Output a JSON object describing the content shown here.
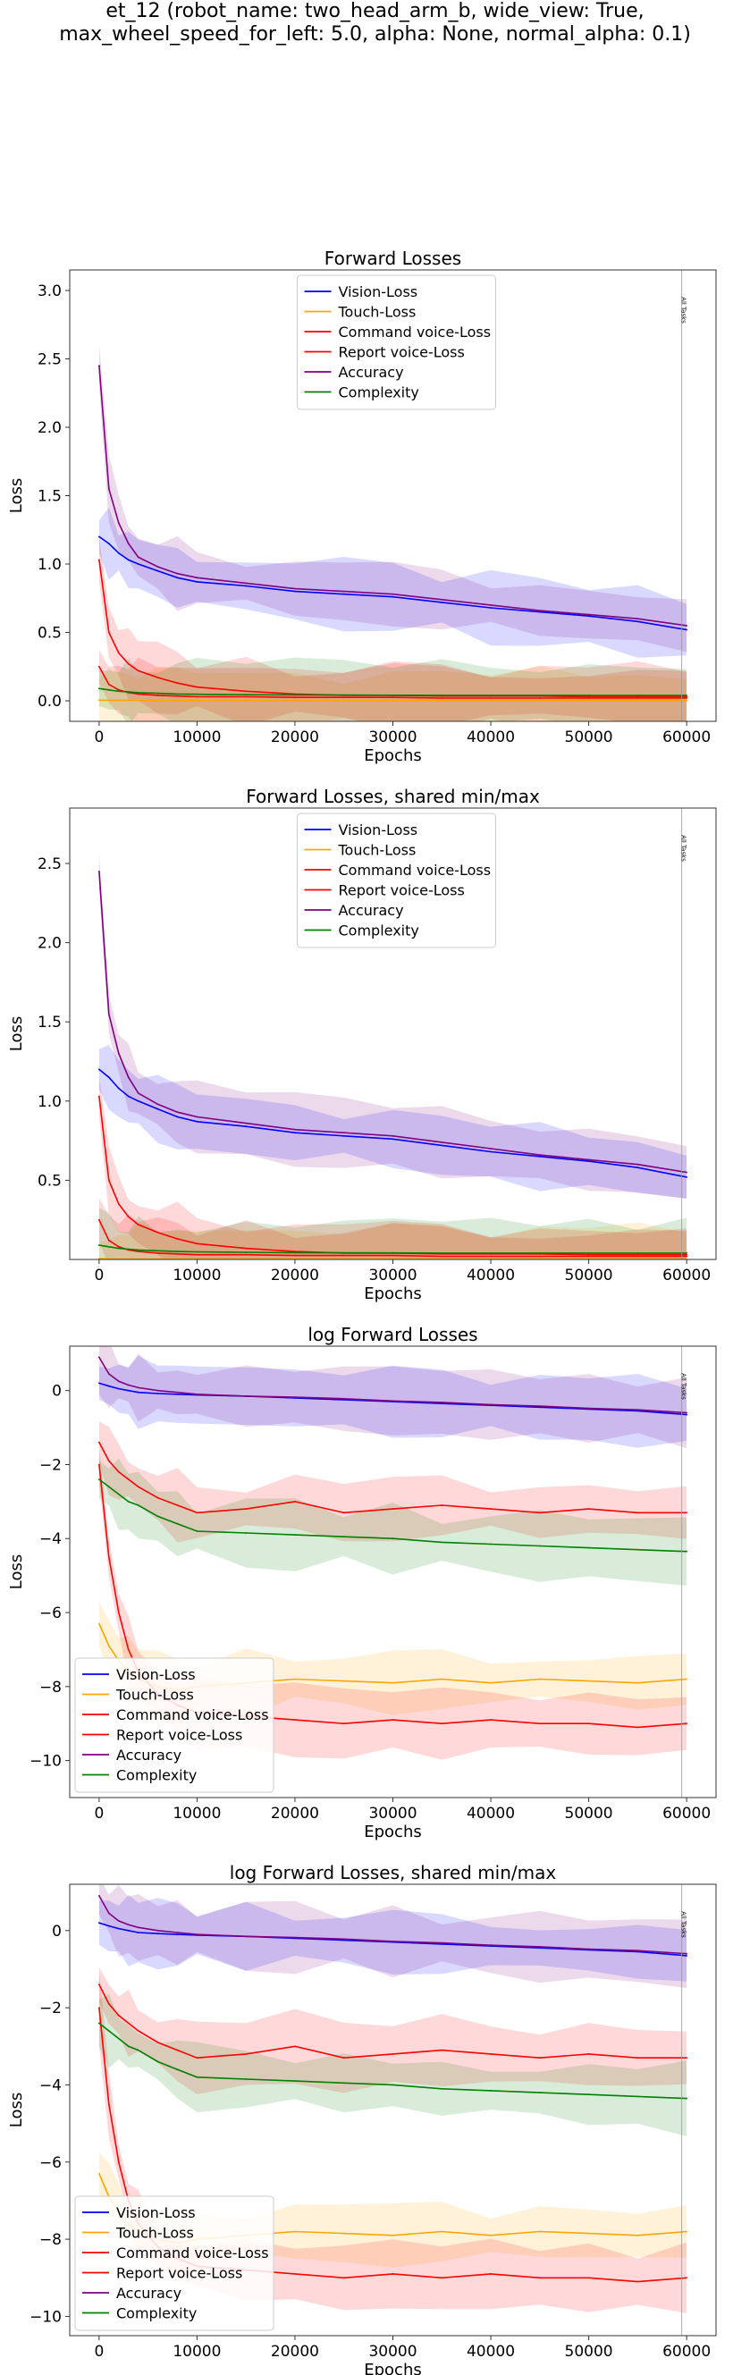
{
  "figure": {
    "suptitle_line1": "et_12 (robot_name: two_head_arm_b, wide_view: True,",
    "suptitle_line2": "max_wheel_speed_for_left: 5.0, alpha: None, normal_alpha: 0.1)"
  },
  "colors": {
    "vision": "#0000ff",
    "touch": "#ffa500",
    "command": "#ff0000",
    "report": "#ff0000",
    "accuracy": "#800080",
    "complexity": "#008000"
  },
  "chart_data": [
    {
      "type": "line",
      "title": "Forward Losses",
      "xlabel": "Epochs",
      "ylabel": "Loss",
      "xlim": [
        -3000,
        63000
      ],
      "ylim": [
        -0.15,
        3.15
      ],
      "xticks": [
        0,
        10000,
        20000,
        30000,
        40000,
        50000,
        60000
      ],
      "yticks": [
        0.0,
        0.5,
        1.0,
        1.5,
        2.0,
        2.5,
        3.0
      ],
      "ytick_labels": [
        "0.0",
        "0.5",
        "1.0",
        "1.5",
        "2.0",
        "2.5",
        "3.0"
      ],
      "legend_position": "upper center",
      "vline": {
        "x": 59500,
        "label": "All Tasks"
      },
      "x": [
        0,
        1000,
        2000,
        3000,
        4000,
        6000,
        8000,
        10000,
        15000,
        20000,
        25000,
        30000,
        35000,
        40000,
        45000,
        50000,
        55000,
        60000
      ],
      "series": [
        {
          "name": "Vision-Loss",
          "color_key": "vision",
          "values": [
            1.2,
            1.15,
            1.08,
            1.03,
            1.0,
            0.95,
            0.9,
            0.87,
            0.84,
            0.8,
            0.78,
            0.76,
            0.72,
            0.68,
            0.65,
            0.62,
            0.58,
            0.52
          ]
        },
        {
          "name": "Touch-Loss",
          "color_key": "touch",
          "values": [
            0.005,
            0.004,
            0.003,
            0.003,
            0.002,
            0.002,
            0.002,
            0.002,
            0.002,
            0.002,
            0.002,
            0.002,
            0.002,
            0.002,
            0.002,
            0.002,
            0.002,
            0.002
          ]
        },
        {
          "name": "Command voice-Loss",
          "color_key": "command",
          "values": [
            0.25,
            0.12,
            0.08,
            0.06,
            0.05,
            0.04,
            0.035,
            0.03,
            0.03,
            0.025,
            0.025,
            0.025,
            0.02,
            0.02,
            0.02,
            0.02,
            0.02,
            0.02
          ]
        },
        {
          "name": "Report voice-Loss",
          "color_key": "report",
          "values": [
            1.03,
            0.5,
            0.35,
            0.27,
            0.22,
            0.17,
            0.13,
            0.1,
            0.07,
            0.05,
            0.04,
            0.04,
            0.035,
            0.035,
            0.035,
            0.03,
            0.03,
            0.03
          ]
        },
        {
          "name": "Accuracy",
          "color_key": "accuracy",
          "values": [
            2.45,
            1.55,
            1.3,
            1.15,
            1.05,
            0.98,
            0.93,
            0.9,
            0.86,
            0.82,
            0.8,
            0.78,
            0.74,
            0.7,
            0.66,
            0.63,
            0.6,
            0.55
          ]
        },
        {
          "name": "Complexity",
          "color_key": "complexity",
          "values": [
            0.09,
            0.08,
            0.07,
            0.065,
            0.06,
            0.055,
            0.05,
            0.048,
            0.045,
            0.043,
            0.042,
            0.041,
            0.04,
            0.04,
            0.04,
            0.04,
            0.04,
            0.04
          ]
        }
      ]
    },
    {
      "type": "line",
      "title": "Forward Losses, shared min/max",
      "xlabel": "Epochs",
      "ylabel": "Loss",
      "xlim": [
        -3000,
        63000
      ],
      "ylim": [
        0.0,
        2.85
      ],
      "xticks": [
        0,
        10000,
        20000,
        30000,
        40000,
        50000,
        60000
      ],
      "yticks": [
        0.5,
        1.0,
        1.5,
        2.0,
        2.5
      ],
      "ytick_labels": [
        "0.5",
        "1.0",
        "1.5",
        "2.0",
        "2.5"
      ],
      "legend_position": "upper center",
      "vline": {
        "x": 59500,
        "label": "All Tasks"
      },
      "x": [
        0,
        1000,
        2000,
        3000,
        4000,
        6000,
        8000,
        10000,
        15000,
        20000,
        25000,
        30000,
        35000,
        40000,
        45000,
        50000,
        55000,
        60000
      ],
      "series": [
        {
          "name": "Vision-Loss",
          "color_key": "vision",
          "values": [
            1.2,
            1.15,
            1.08,
            1.03,
            1.0,
            0.95,
            0.9,
            0.87,
            0.84,
            0.8,
            0.78,
            0.76,
            0.72,
            0.68,
            0.65,
            0.62,
            0.58,
            0.52
          ]
        },
        {
          "name": "Touch-Loss",
          "color_key": "touch",
          "values": [
            0.005,
            0.004,
            0.003,
            0.003,
            0.002,
            0.002,
            0.002,
            0.002,
            0.002,
            0.002,
            0.002,
            0.002,
            0.002,
            0.002,
            0.002,
            0.002,
            0.002,
            0.002
          ]
        },
        {
          "name": "Command voice-Loss",
          "color_key": "command",
          "values": [
            0.25,
            0.12,
            0.08,
            0.06,
            0.05,
            0.04,
            0.035,
            0.03,
            0.03,
            0.025,
            0.025,
            0.025,
            0.02,
            0.02,
            0.02,
            0.02,
            0.02,
            0.02
          ]
        },
        {
          "name": "Report voice-Loss",
          "color_key": "report",
          "values": [
            1.03,
            0.5,
            0.35,
            0.27,
            0.22,
            0.17,
            0.13,
            0.1,
            0.07,
            0.05,
            0.04,
            0.04,
            0.035,
            0.035,
            0.035,
            0.03,
            0.03,
            0.03
          ]
        },
        {
          "name": "Accuracy",
          "color_key": "accuracy",
          "values": [
            2.45,
            1.55,
            1.3,
            1.15,
            1.05,
            0.98,
            0.93,
            0.9,
            0.86,
            0.82,
            0.8,
            0.78,
            0.74,
            0.7,
            0.66,
            0.63,
            0.6,
            0.55
          ]
        },
        {
          "name": "Complexity",
          "color_key": "complexity",
          "values": [
            0.09,
            0.08,
            0.07,
            0.065,
            0.06,
            0.055,
            0.05,
            0.048,
            0.045,
            0.043,
            0.042,
            0.041,
            0.04,
            0.04,
            0.04,
            0.04,
            0.04,
            0.04
          ]
        }
      ]
    },
    {
      "type": "line",
      "title": "log Forward Losses",
      "xlabel": "Epochs",
      "ylabel": "Loss",
      "xlim": [
        -3000,
        63000
      ],
      "ylim": [
        -11.0,
        1.2
      ],
      "xticks": [
        0,
        10000,
        20000,
        30000,
        40000,
        50000,
        60000
      ],
      "yticks": [
        0,
        -2,
        -4,
        -6,
        -8,
        -10
      ],
      "ytick_labels": [
        "0",
        "−2",
        "−4",
        "−6",
        "−8",
        "−10"
      ],
      "legend_position": "lower left",
      "vline": {
        "x": 59500,
        "label": "All Tasks"
      },
      "x": [
        0,
        1000,
        2000,
        3000,
        4000,
        6000,
        8000,
        10000,
        15000,
        20000,
        25000,
        30000,
        35000,
        40000,
        45000,
        50000,
        55000,
        60000
      ],
      "series": [
        {
          "name": "Vision-Loss",
          "color_key": "vision",
          "values": [
            0.2,
            0.12,
            0.05,
            0.0,
            -0.05,
            -0.08,
            -0.1,
            -0.12,
            -0.15,
            -0.2,
            -0.25,
            -0.3,
            -0.35,
            -0.4,
            -0.45,
            -0.5,
            -0.55,
            -0.65
          ]
        },
        {
          "name": "Touch-Loss",
          "color_key": "touch",
          "values": [
            -6.3,
            -6.9,
            -7.3,
            -7.6,
            -7.8,
            -8.0,
            -8.1,
            -8.0,
            -7.9,
            -7.8,
            -7.85,
            -7.9,
            -7.8,
            -7.9,
            -7.8,
            -7.85,
            -7.9,
            -7.8
          ]
        },
        {
          "name": "Command voice-Loss",
          "color_key": "command",
          "values": [
            -1.4,
            -1.9,
            -2.2,
            -2.4,
            -2.6,
            -2.9,
            -3.1,
            -3.3,
            -3.2,
            -3.0,
            -3.3,
            -3.2,
            -3.1,
            -3.2,
            -3.3,
            -3.2,
            -3.3,
            -3.3
          ]
        },
        {
          "name": "Report voice-Loss",
          "color_key": "report",
          "values": [
            -2.0,
            -4.5,
            -6.0,
            -7.0,
            -7.6,
            -8.2,
            -8.5,
            -8.7,
            -8.8,
            -8.9,
            -9.0,
            -8.9,
            -9.0,
            -8.9,
            -9.0,
            -9.0,
            -9.1,
            -9.0
          ]
        },
        {
          "name": "Accuracy",
          "color_key": "accuracy",
          "values": [
            0.9,
            0.45,
            0.25,
            0.15,
            0.08,
            0.0,
            -0.05,
            -0.1,
            -0.15,
            -0.18,
            -0.22,
            -0.28,
            -0.32,
            -0.38,
            -0.42,
            -0.48,
            -0.52,
            -0.6
          ]
        },
        {
          "name": "Complexity",
          "color_key": "complexity",
          "values": [
            -2.4,
            -2.6,
            -2.8,
            -3.0,
            -3.1,
            -3.4,
            -3.6,
            -3.8,
            -3.85,
            -3.9,
            -3.95,
            -4.0,
            -4.1,
            -4.15,
            -4.2,
            -4.25,
            -4.3,
            -4.35
          ]
        }
      ]
    },
    {
      "type": "line",
      "title": "log Forward Losses, shared min/max",
      "xlabel": "Epochs",
      "ylabel": "Loss",
      "xlim": [
        -3000,
        63000
      ],
      "ylim": [
        -10.5,
        1.2
      ],
      "xticks": [
        0,
        10000,
        20000,
        30000,
        40000,
        50000,
        60000
      ],
      "yticks": [
        0,
        -2,
        -4,
        -6,
        -8,
        -10
      ],
      "ytick_labels": [
        "0",
        "−2",
        "−4",
        "−6",
        "−8",
        "−10"
      ],
      "legend_position": "lower left",
      "vline": {
        "x": 59500,
        "label": "All Tasks"
      },
      "x": [
        0,
        1000,
        2000,
        3000,
        4000,
        6000,
        8000,
        10000,
        15000,
        20000,
        25000,
        30000,
        35000,
        40000,
        45000,
        50000,
        55000,
        60000
      ],
      "series": [
        {
          "name": "Vision-Loss",
          "color_key": "vision",
          "values": [
            0.2,
            0.12,
            0.05,
            0.0,
            -0.05,
            -0.08,
            -0.1,
            -0.12,
            -0.15,
            -0.2,
            -0.25,
            -0.3,
            -0.35,
            -0.4,
            -0.45,
            -0.5,
            -0.55,
            -0.65
          ]
        },
        {
          "name": "Touch-Loss",
          "color_key": "touch",
          "values": [
            -6.3,
            -6.9,
            -7.3,
            -7.6,
            -7.8,
            -8.0,
            -8.1,
            -8.0,
            -7.9,
            -7.8,
            -7.85,
            -7.9,
            -7.8,
            -7.9,
            -7.8,
            -7.85,
            -7.9,
            -7.8
          ]
        },
        {
          "name": "Command voice-Loss",
          "color_key": "command",
          "values": [
            -1.4,
            -1.9,
            -2.2,
            -2.4,
            -2.6,
            -2.9,
            -3.1,
            -3.3,
            -3.2,
            -3.0,
            -3.3,
            -3.2,
            -3.1,
            -3.2,
            -3.3,
            -3.2,
            -3.3,
            -3.3
          ]
        },
        {
          "name": "Report voice-Loss",
          "color_key": "report",
          "values": [
            -2.0,
            -4.5,
            -6.0,
            -7.0,
            -7.6,
            -8.2,
            -8.5,
            -8.7,
            -8.8,
            -8.9,
            -9.0,
            -8.9,
            -9.0,
            -8.9,
            -9.0,
            -9.0,
            -9.1,
            -9.0
          ]
        },
        {
          "name": "Accuracy",
          "color_key": "accuracy",
          "values": [
            0.9,
            0.45,
            0.25,
            0.15,
            0.08,
            0.0,
            -0.05,
            -0.1,
            -0.15,
            -0.18,
            -0.22,
            -0.28,
            -0.32,
            -0.38,
            -0.42,
            -0.48,
            -0.52,
            -0.6
          ]
        },
        {
          "name": "Complexity",
          "color_key": "complexity",
          "values": [
            -2.4,
            -2.6,
            -2.8,
            -3.0,
            -3.1,
            -3.4,
            -3.6,
            -3.8,
            -3.85,
            -3.9,
            -3.95,
            -4.0,
            -4.1,
            -4.15,
            -4.2,
            -4.25,
            -4.3,
            -4.35
          ]
        }
      ]
    }
  ]
}
